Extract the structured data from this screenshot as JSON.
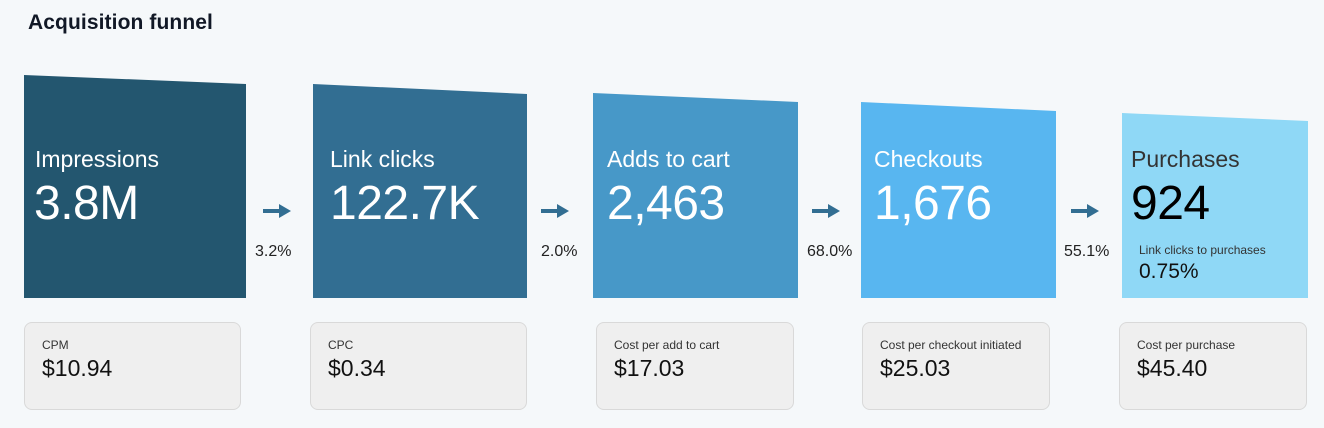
{
  "title": "Acquisition funnel",
  "colors": {
    "stage1": "#23566f",
    "stage2": "#326e92",
    "stage3": "#4798c8",
    "stage4": "#58b6f0",
    "stage5": "#8fd8f6",
    "card_bg": "#efefef",
    "arrow": "#326e92"
  },
  "stages": [
    {
      "label": "Impressions",
      "value": "3.8M"
    },
    {
      "label": "Link clicks",
      "value": "122.7K"
    },
    {
      "label": "Adds to cart",
      "value": "2,463"
    },
    {
      "label": "Checkouts",
      "value": "1,676"
    },
    {
      "label": "Purchases",
      "value": "924",
      "sublabel": "Link clicks to purchases",
      "subvalue": "0.75%"
    }
  ],
  "conversion_rates": [
    "3.2%",
    "2.0%",
    "68.0%",
    "55.1%"
  ],
  "cards": [
    {
      "label": "CPM",
      "value": "$10.94"
    },
    {
      "label": "CPC",
      "value": "$0.34"
    },
    {
      "label": "Cost per add to cart",
      "value": "$17.03"
    },
    {
      "label": "Cost per checkout initiated",
      "value": "$25.03"
    },
    {
      "label": "Cost per purchase",
      "value": "$45.40"
    }
  ]
}
